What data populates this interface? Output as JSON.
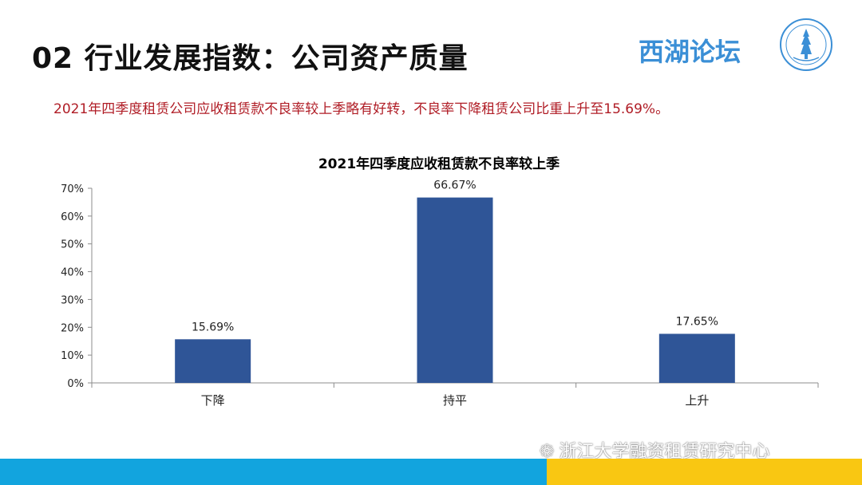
{
  "header": {
    "title": "02 行业发展指数：公司资产质量",
    "brand": "西湖论坛"
  },
  "subtitle": "2021年四季度租赁公司应收租赁款不良率较上季略有好转，不良率下降租赁公司比重上升至15.69%。",
  "footer": {
    "watermark": "浙江大学融资租赁研究中心",
    "colors": {
      "blue": "#12a4de",
      "yellow": "#f9c712"
    }
  },
  "chart_data": {
    "type": "bar",
    "title": "2021年四季度应收租赁款不良率较上季",
    "categories": [
      "下降",
      "持平",
      "上升"
    ],
    "values": [
      15.69,
      66.67,
      17.65
    ],
    "data_labels": [
      "15.69%",
      "66.67%",
      "17.65%"
    ],
    "y_ticks": [
      "0%",
      "10%",
      "20%",
      "30%",
      "40%",
      "50%",
      "60%",
      "70%"
    ],
    "ylim": [
      0,
      70
    ],
    "grid": false,
    "legend": "none",
    "bar_color": "#2f5597"
  }
}
